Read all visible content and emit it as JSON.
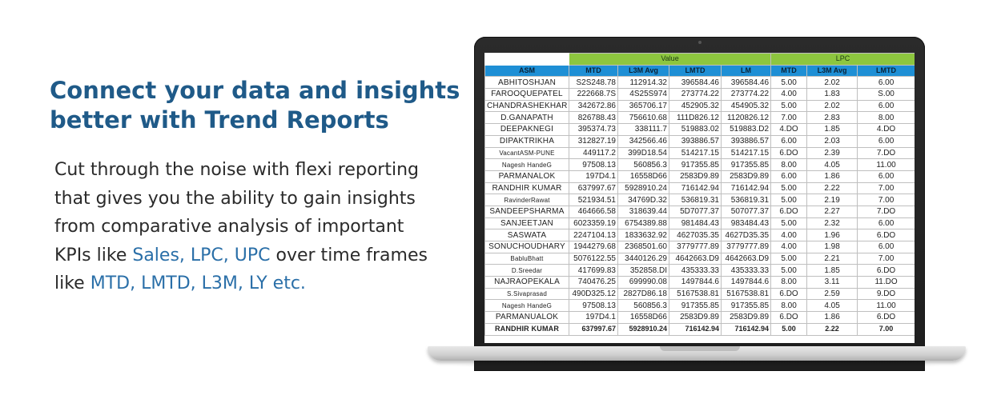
{
  "headline": {
    "line1": "Connect your data and insights",
    "line2": "better with Trend Reports"
  },
  "body": {
    "text1": "Cut through the noise with flexi reporting that gives you the ability to gain insights from comparative analysis of important KPIs like ",
    "kpis": "Sales, LPC, UPC",
    "text2": " over time frames like ",
    "frames": "MTD, LMTD, L3M, LY etc.",
    "accent_color": "#2a6fa8",
    "headline_color": "#1f5a88"
  },
  "report": {
    "group_headers": {
      "value": "Value",
      "lpc": "LPC"
    },
    "columns": [
      "ASM",
      "MTD",
      "L3M Avg",
      "LMTD",
      "LM",
      "MTD",
      "L3M Avg",
      "LMTD"
    ],
    "rows": [
      [
        "ABHITOSHJAN",
        "S2S248.78",
        "112914.32",
        "396584.46",
        "396584.46",
        "5.00",
        "2.02",
        "6.00"
      ],
      [
        "FAROOQUEPATEL",
        "222668.7S",
        "4S25S974",
        "273774.22",
        "273774.22",
        "4.00",
        "1.83",
        "S.00"
      ],
      [
        "CHANDRASHEKHAR",
        "342672.86",
        "365706.17",
        "452905.32",
        "454905.32",
        "5.00",
        "2.02",
        "6.00"
      ],
      [
        "D.GANAPATH",
        "826788.43",
        "756610.68",
        "111D826.12",
        "1120826.12",
        "7.00",
        "2.83",
        "8.00"
      ],
      [
        "DEEPAKNEGI",
        "395374.73",
        "338111.7",
        "519883.02",
        "519883.D2",
        "4.DO",
        "1.85",
        "4.DO"
      ],
      [
        "DIPAKTRIKHA",
        "312827.19",
        "342566.46",
        "393886.57",
        "393886.57",
        "6.00",
        "2.03",
        "6.00"
      ],
      [
        "VacantASM-PUNE",
        "449117.2",
        "399D18.54",
        "514217.15",
        "514217.15",
        "6.DO",
        "2.39",
        "7.DO"
      ],
      [
        "Nagesh HandeG",
        "97508.13",
        "560856.3",
        "917355.85",
        "917355.85",
        "8.00",
        "4.05",
        "11.00"
      ],
      [
        "PARMANALOK",
        "197D4.1",
        "16558D66",
        "2583D9.89",
        "2583D9.89",
        "6.00",
        "1.86",
        "6.00"
      ],
      [
        "RANDHIR KUMAR",
        "637997.67",
        "5928910.24",
        "716142.94",
        "716142.94",
        "5.00",
        "2.22",
        "7.00"
      ],
      [
        "RavinderRawat",
        "521934.51",
        "34769D.32",
        "536819.31",
        "536819.31",
        "5.00",
        "2.19",
        "7.00"
      ],
      [
        "SANDEEPSHARMA",
        "464666.58",
        "318639.44",
        "5D7077.37",
        "507077.37",
        "6.DO",
        "2.27",
        "7.DO"
      ],
      [
        "SANJEETJAN",
        "6023359.19",
        "6754389.88",
        "981484.43",
        "983484.43",
        "5.00",
        "2.32",
        "6.00"
      ],
      [
        "SASWATA",
        "2247104.13",
        "1833632.92",
        "4627035.35",
        "4627D35.35",
        "4.00",
        "1.96",
        "6.DO"
      ],
      [
        "SONUCHOUDHARY",
        "1944279.68",
        "2368501.60",
        "3779777.89",
        "3779777.89",
        "4.00",
        "1.98",
        "6.00"
      ],
      [
        "BabluBhatt",
        "5076122.55",
        "3440126.29",
        "4642663.D9",
        "4642663.D9",
        "5.00",
        "2.21",
        "7.00"
      ],
      [
        "D.Sreedar",
        "417699.83",
        "352858.DI",
        "435333.33",
        "435333.33",
        "5.00",
        "1.85",
        "6.DO"
      ],
      [
        "NAJRAOPEKALA",
        "740476.25",
        "699990.08",
        "1497844.6",
        "1497844.6",
        "8.00",
        "3.11",
        "11.DO"
      ],
      [
        "S.Sivaprasad",
        "490D325.12",
        "2827D86.18",
        "5167538.81",
        "5167538.81",
        "6.DO",
        "2.59",
        "9.DO"
      ],
      [
        "Nagesh HandeG",
        "97508.13",
        "560856.3",
        "917355.85",
        "917355.85",
        "8.00",
        "4.05",
        "11.00"
      ],
      [
        "PARMANUALOK",
        "197D4.1",
        "16558D66",
        "2583D9.89",
        "2583D9.89",
        "6.DO",
        "1.86",
        "6.DO"
      ],
      [
        "RANDHIR KUMAR",
        "637997.67",
        "5928910.24",
        "716142.94",
        "716142.94",
        "5.00",
        "2.22",
        "7.00"
      ]
    ]
  }
}
